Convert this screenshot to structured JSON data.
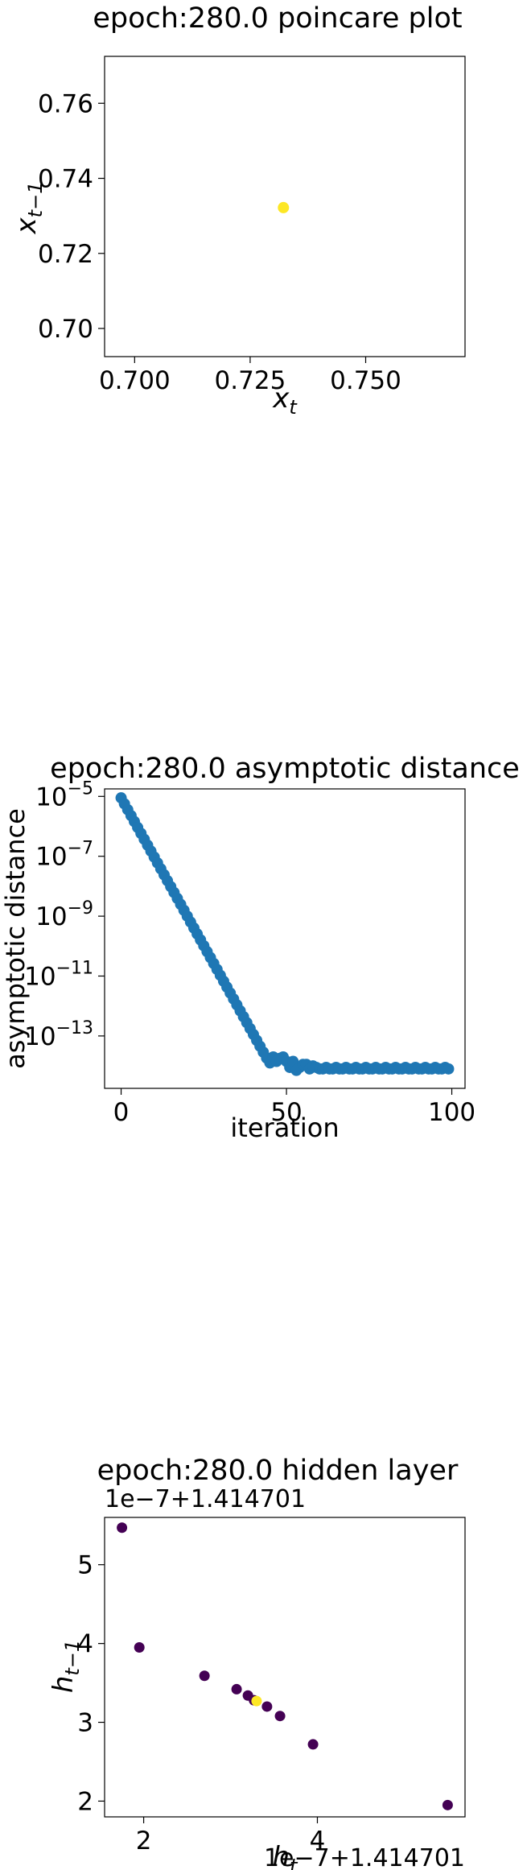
{
  "chart_data": [
    {
      "type": "scatter",
      "title": "epoch:280.0 poincare plot",
      "xlabel_base": "x",
      "xlabel_sub": "t",
      "ylabel_base": "x",
      "ylabel_sub": "t−1",
      "xlim": [
        0.6935,
        0.7715
      ],
      "ylim": [
        0.6925,
        0.7725
      ],
      "xticks": [
        0.7,
        0.725,
        0.75
      ],
      "xtick_labels": [
        "0.700",
        "0.725",
        "0.750"
      ],
      "yticks": [
        0.7,
        0.72,
        0.74,
        0.76
      ],
      "ytick_labels": [
        "0.70",
        "0.72",
        "0.74",
        "0.76"
      ],
      "points": [
        {
          "x": 0.7322,
          "y": 0.7322,
          "color": "#fde725"
        }
      ]
    },
    {
      "type": "scatter",
      "title": "epoch:280.0 asymptotic distance",
      "xlabel": "iteration",
      "ylabel": "asymptotic distance",
      "yscale": "log",
      "xlim": [
        -5,
        104
      ],
      "ylim_log10": [
        -14.75,
        -4.75
      ],
      "xticks": [
        0,
        50,
        100
      ],
      "xtick_labels": [
        "0",
        "50",
        "100"
      ],
      "yticks_log10": [
        -5,
        -7,
        -9,
        -11,
        -13
      ],
      "ytick_base": "10",
      "ytick_exponents": [
        "−5",
        "−7",
        "−9",
        "−11",
        "−13"
      ],
      "color": "#1f77b4",
      "series": [
        {
          "x_start": 0,
          "x_end": 44,
          "log10_start": -5.05,
          "slope": -0.1975
        },
        {
          "plateau_x": [
            45,
            46,
            47,
            48,
            49,
            50,
            51,
            52,
            53,
            54,
            55,
            56,
            57,
            58,
            59,
            60,
            61,
            62,
            63,
            64,
            65,
            66,
            67,
            68,
            69,
            70,
            71,
            72,
            73,
            74,
            75,
            76,
            77,
            78,
            79,
            80,
            81,
            82,
            83,
            84,
            85,
            86,
            87,
            88,
            89,
            90,
            91,
            92,
            93,
            94,
            95,
            96,
            97,
            98,
            99
          ],
          "plateau_log10": [
            -13.9,
            -13.7,
            -13.85,
            -13.75,
            -13.7,
            -13.85,
            -14.05,
            -13.85,
            -14.15,
            -14.05,
            -13.95,
            -13.95,
            -14.1,
            -14.0,
            -14.05,
            -14.1,
            -14.1,
            -14.05,
            -14.1,
            -14.1,
            -14.05,
            -14.1,
            -14.1,
            -14.05,
            -14.1,
            -14.1,
            -14.05,
            -14.1,
            -14.1,
            -14.05,
            -14.1,
            -14.1,
            -14.05,
            -14.1,
            -14.1,
            -14.05,
            -14.1,
            -14.1,
            -14.05,
            -14.1,
            -14.1,
            -14.05,
            -14.1,
            -14.1,
            -14.05,
            -14.1,
            -14.1,
            -14.05,
            -14.1,
            -14.1,
            -14.05,
            -14.1,
            -14.1,
            -14.05,
            -14.1
          ]
        }
      ]
    },
    {
      "type": "scatter",
      "title": "epoch:280.0 hidden layer",
      "xlabel_base": "h",
      "xlabel_sub": "t",
      "ylabel_base": "h",
      "ylabel_sub": "t−1",
      "x_offset_label": "1e−7+1.414701",
      "y_offset_label": "1e−7+1.414701",
      "xlim": [
        1.55,
        5.7
      ],
      "ylim": [
        1.8,
        5.6
      ],
      "xticks": [
        2,
        4
      ],
      "xtick_labels": [
        "2",
        "4"
      ],
      "yticks": [
        2,
        3,
        4,
        5
      ],
      "ytick_labels": [
        "2",
        "3",
        "4",
        "5"
      ],
      "points": [
        {
          "x": 1.75,
          "y": 5.47,
          "color": "#440154"
        },
        {
          "x": 1.95,
          "y": 3.95,
          "color": "#440154"
        },
        {
          "x": 2.7,
          "y": 3.59,
          "color": "#440154"
        },
        {
          "x": 3.07,
          "y": 3.42,
          "color": "#440154"
        },
        {
          "x": 3.2,
          "y": 3.34,
          "color": "#440154"
        },
        {
          "x": 3.27,
          "y": 3.28,
          "color": "#440154"
        },
        {
          "x": 3.42,
          "y": 3.2,
          "color": "#440154"
        },
        {
          "x": 3.57,
          "y": 3.08,
          "color": "#440154"
        },
        {
          "x": 3.95,
          "y": 2.72,
          "color": "#440154"
        },
        {
          "x": 5.5,
          "y": 1.95,
          "color": "#440154"
        },
        {
          "x": 3.3,
          "y": 3.27,
          "color": "#fde725"
        }
      ]
    }
  ]
}
